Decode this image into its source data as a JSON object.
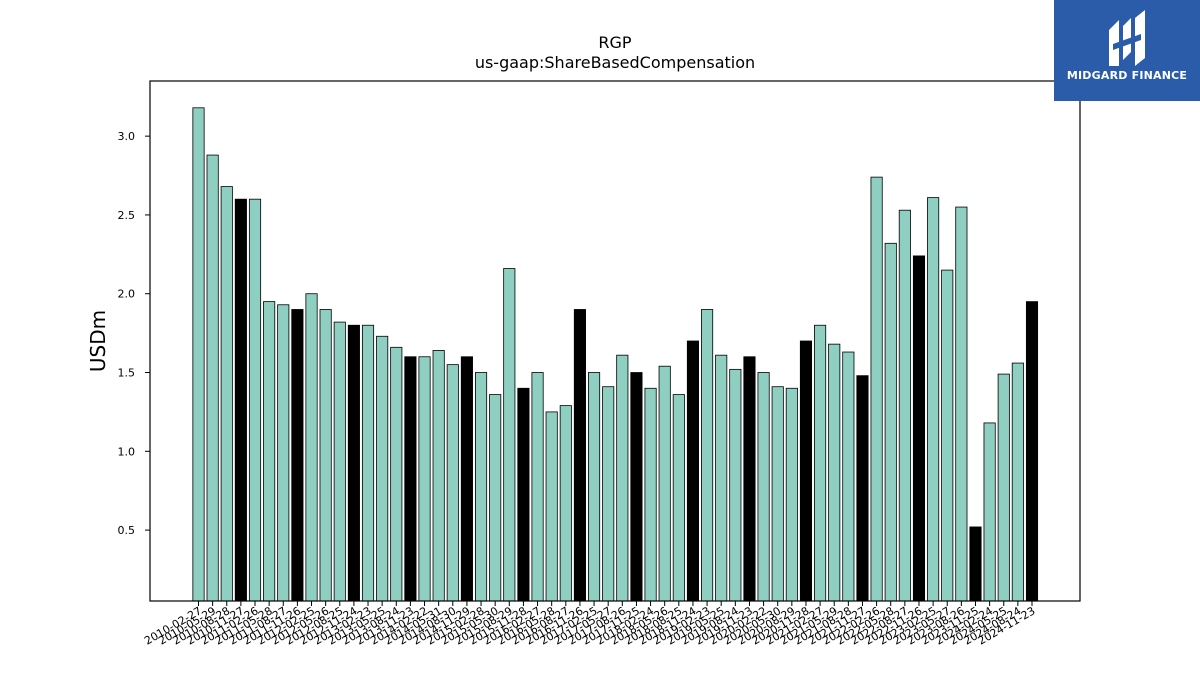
{
  "logo": {
    "text": "MIDGARD FINANCE",
    "icon": "midgard-logo-icon",
    "background": "#2a5caa"
  },
  "chart_data": {
    "type": "bar",
    "title": "RGP",
    "subtitle": "us-gaap:ShareBasedCompensation",
    "ylabel": "USDm",
    "xlabel": "",
    "ylim": [
      0.05,
      3.35
    ],
    "yticks": [
      "0.5",
      "1.0",
      "1.5",
      "2.0",
      "2.5",
      "3.0"
    ],
    "colors": {
      "default": "#8ecfc2",
      "highlight": "#000000",
      "edge": "#000000"
    },
    "categories": [
      "2010-02-27",
      "2010-05-29",
      "2010-08-28",
      "2010-11-27",
      "2011-02-26",
      "2011-05-28",
      "2011-08-27",
      "2011-11-26",
      "2012-02-25",
      "2012-05-26",
      "2012-08-25",
      "2012-11-24",
      "2013-02-23",
      "2013-05-25",
      "2013-08-24",
      "2013-11-23",
      "2014-02-22",
      "2014-05-31",
      "2014-08-30",
      "2014-11-29",
      "2015-02-28",
      "2015-05-30",
      "2015-08-29",
      "2015-11-28",
      "2016-02-27",
      "2016-05-28",
      "2016-08-27",
      "2016-11-26",
      "2017-02-25",
      "2017-05-27",
      "2017-08-26",
      "2017-11-25",
      "2018-02-24",
      "2018-05-26",
      "2018-08-25",
      "2018-11-24",
      "2019-02-23",
      "2019-05-25",
      "2019-08-24",
      "2019-11-23",
      "2020-02-22",
      "2020-05-30",
      "2020-08-29",
      "2020-11-28",
      "2021-02-27",
      "2021-05-29",
      "2021-08-28",
      "2021-11-27",
      "2022-02-26",
      "2022-05-28",
      "2022-08-27",
      "2022-11-26",
      "2023-02-25",
      "2023-05-27",
      "2023-08-26",
      "2023-11-25",
      "2024-02-24",
      "2024-05-25",
      "2024-08-24",
      "2024-11-23"
    ],
    "values": [
      3.18,
      2.88,
      2.68,
      2.6,
      2.6,
      1.95,
      1.93,
      1.9,
      2.0,
      1.9,
      1.82,
      1.8,
      1.8,
      1.73,
      1.66,
      1.6,
      1.6,
      1.64,
      1.55,
      1.6,
      1.5,
      1.36,
      2.16,
      1.4,
      1.5,
      1.25,
      1.29,
      1.9,
      1.5,
      1.41,
      1.61,
      1.5,
      1.4,
      1.54,
      1.36,
      1.7,
      1.9,
      1.61,
      1.52,
      1.6,
      1.5,
      1.41,
      1.4,
      1.7,
      1.8,
      1.68,
      1.63,
      1.48,
      2.74,
      2.32,
      2.53,
      2.24,
      2.61,
      2.15,
      2.55,
      0.52,
      1.18,
      1.49,
      1.56,
      1.95
    ],
    "highlighted": [
      3,
      7,
      11,
      15,
      19,
      23,
      27,
      31,
      35,
      39,
      43,
      47,
      51,
      55,
      59
    ]
  }
}
